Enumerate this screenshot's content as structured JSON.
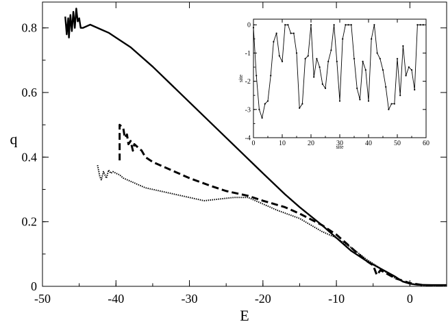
{
  "chart_data": [
    {
      "type": "line",
      "xlabel": "E",
      "ylabel": "q",
      "xlim": [
        -50,
        5
      ],
      "ylim": [
        0,
        0.88
      ],
      "xticks": [
        -50,
        -40,
        -30,
        -20,
        -10,
        0
      ],
      "yticks": [
        0,
        0.2,
        0.4,
        0.6,
        0.8
      ],
      "xtick_labels": [
        "-50",
        "-40",
        "-30",
        "-20",
        "-10",
        "0"
      ],
      "ytick_labels": [
        "0",
        "0.2",
        "0.4",
        "0.6",
        "0.8"
      ],
      "grid": false,
      "series": [
        {
          "style": "solid",
          "color": "#000000",
          "x": [
            -46.9,
            -46.7,
            -46.5,
            -46.4,
            -46.2,
            -46.0,
            -45.8,
            -45.6,
            -45.4,
            -45.2,
            -45.0,
            -44.8,
            -44.5,
            -44.0,
            -43.5,
            -43.0,
            -42.0,
            -41.0,
            -40.0,
            -38.0,
            -35.0,
            -30.0,
            -25.0,
            -20.0,
            -17.0,
            -15.0,
            -12.0,
            -10.0,
            -8.0,
            -6.0,
            -4.0,
            -2.0,
            -1.0,
            0.0,
            1.0,
            3.0,
            5.0
          ],
          "y": [
            0.835,
            0.78,
            0.83,
            0.77,
            0.84,
            0.79,
            0.85,
            0.8,
            0.86,
            0.82,
            0.83,
            0.8,
            0.8,
            0.805,
            0.81,
            0.805,
            0.795,
            0.785,
            0.77,
            0.74,
            0.68,
            0.57,
            0.46,
            0.35,
            0.285,
            0.245,
            0.19,
            0.15,
            0.11,
            0.08,
            0.055,
            0.03,
            0.015,
            0.008,
            0.005,
            0.004,
            0.004
          ]
        },
        {
          "style": "dashed",
          "color": "#000000",
          "x": [
            -39.5,
            -39.5,
            -39.0,
            -38.8,
            -38.5,
            -38.3,
            -38.0,
            -37.7,
            -37.5,
            -37.0,
            -36.5,
            -36.0,
            -35.0,
            -32.0,
            -30.0,
            -27.0,
            -25.0,
            -22.0,
            -20.0,
            -17.0,
            -15.0,
            -12.0,
            -10.0,
            -8.0,
            -6.0,
            -5.0,
            -4.5,
            -4.0,
            -2.0,
            0.0,
            2.0,
            5.0
          ],
          "y": [
            0.39,
            0.5,
            0.49,
            0.46,
            0.47,
            0.44,
            0.45,
            0.42,
            0.44,
            0.43,
            0.42,
            0.4,
            0.385,
            0.355,
            0.335,
            0.31,
            0.295,
            0.28,
            0.265,
            0.245,
            0.225,
            0.19,
            0.16,
            0.12,
            0.08,
            0.065,
            0.035,
            0.05,
            0.025,
            0.01,
            0.003,
            0.002
          ]
        },
        {
          "style": "dotted",
          "color": "#000000",
          "x": [
            -42.5,
            -42.2,
            -42.0,
            -41.7,
            -41.3,
            -41.0,
            -40.7,
            -40.4,
            -40.0,
            -39.5,
            -39.0,
            -38.0,
            -36.0,
            -34.0,
            -32.0,
            -30.0,
            -28.0,
            -26.0,
            -24.0,
            -22.0,
            -20.0,
            -18.0,
            -15.0,
            -12.0,
            -10.0,
            -8.0,
            -6.0,
            -4.0,
            -2.0,
            0.0,
            2.0,
            5.0
          ],
          "y": [
            0.375,
            0.34,
            0.33,
            0.355,
            0.335,
            0.36,
            0.35,
            0.355,
            0.35,
            0.345,
            0.335,
            0.325,
            0.305,
            0.295,
            0.285,
            0.275,
            0.265,
            0.27,
            0.275,
            0.275,
            0.255,
            0.235,
            0.21,
            0.17,
            0.15,
            0.12,
            0.085,
            0.055,
            0.025,
            0.008,
            0.003,
            0.002
          ]
        }
      ]
    },
    {
      "type": "line",
      "xlabel": "site",
      "ylabel": "site",
      "xlim": [
        0,
        60
      ],
      "ylim": [
        -4,
        0.2
      ],
      "xticks": [
        0,
        10,
        20,
        30,
        40,
        50,
        60
      ],
      "yticks": [
        0,
        -1,
        -2,
        -3,
        -4
      ],
      "xtick_labels": [
        "0",
        "10",
        "20",
        "30",
        "40",
        "50",
        "60"
      ],
      "ytick_labels": [
        "0",
        "-1",
        "-2",
        "-3",
        "-4"
      ],
      "grid": false,
      "series": [
        {
          "style": "solid-markers",
          "color": "#000000",
          "x": [
            0,
            1,
            2,
            3,
            4,
            5,
            6,
            7,
            8,
            9,
            10,
            11,
            12,
            13,
            14,
            15,
            16,
            17,
            18,
            19,
            20,
            21,
            22,
            23,
            24,
            25,
            26,
            27,
            28,
            29,
            30,
            31,
            32,
            33,
            34,
            35,
            36,
            37,
            38,
            39,
            40,
            41,
            42,
            43,
            44,
            45,
            46,
            47,
            48,
            49,
            50,
            51,
            52,
            53,
            54,
            55,
            56,
            57,
            58,
            59
          ],
          "y": [
            -0.1,
            -1.8,
            -3.0,
            -3.3,
            -2.8,
            -2.7,
            -1.8,
            -0.6,
            -0.3,
            -1.1,
            -1.3,
            0.0,
            0.0,
            -0.3,
            -0.3,
            -1.0,
            -2.95,
            -2.8,
            -1.2,
            -1.1,
            0.0,
            -1.85,
            -1.2,
            -1.5,
            -2.1,
            -2.25,
            -1.3,
            -0.9,
            0.0,
            -1.3,
            -2.7,
            -0.5,
            0.0,
            0.0,
            0.0,
            -1.2,
            -2.25,
            -2.65,
            -1.3,
            -1.6,
            -2.7,
            -0.5,
            0.0,
            -1.0,
            -1.2,
            -1.6,
            -2.2,
            -3.0,
            -2.8,
            -2.8,
            -1.2,
            -2.5,
            -0.75,
            -1.8,
            -1.5,
            -1.6,
            -2.3,
            0.0,
            0.0,
            0.0
          ]
        }
      ]
    }
  ]
}
